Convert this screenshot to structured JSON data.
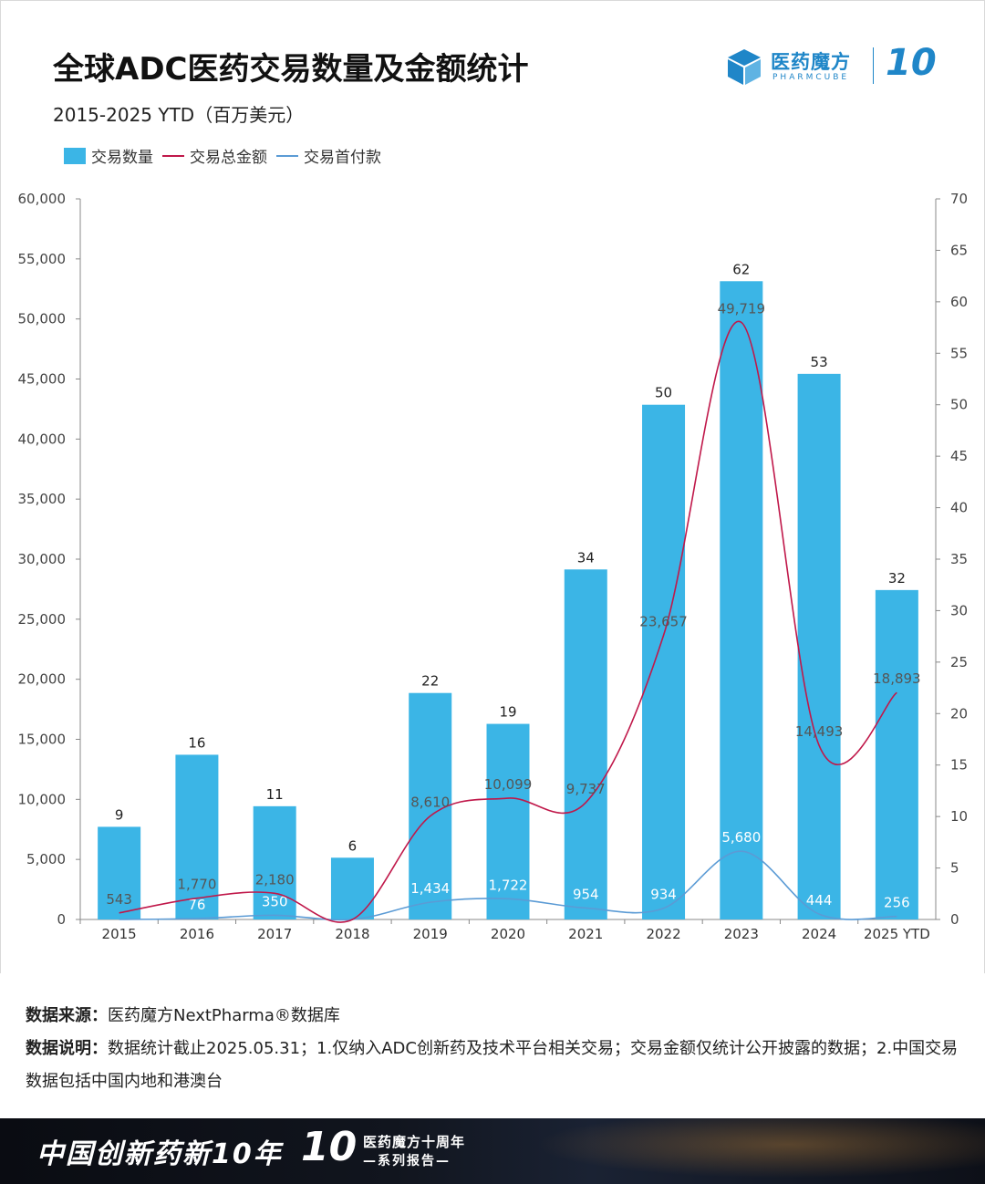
{
  "title": "全球ADC医药交易数量及金额统计",
  "subtitle": "2015-2025 YTD（百万美元）",
  "logo": {
    "cn": "医药魔方",
    "en": "PHARMCUBE",
    "ten": "10"
  },
  "colors": {
    "bar": "#3bb5e6",
    "total_line": "#c0184a",
    "upfront_line": "#5b9bd5"
  },
  "chart_data": {
    "type": "bar+line",
    "categories": [
      "2015",
      "2016",
      "2017",
      "2018",
      "2019",
      "2020",
      "2021",
      "2022",
      "2023",
      "2024",
      "2025 YTD"
    ],
    "series": [
      {
        "name": "交易数量",
        "type": "bar",
        "axis": "right",
        "values": [
          9,
          16,
          11,
          6,
          22,
          19,
          34,
          50,
          62,
          53,
          32
        ]
      },
      {
        "name": "交易总金额",
        "type": "line",
        "axis": "left",
        "values": [
          543,
          1770,
          2180,
          null,
          8610,
          10099,
          9737,
          23657,
          49719,
          14493,
          18893
        ],
        "labels": [
          "543",
          "1,770",
          "2,180",
          "",
          "8,610",
          "10,099",
          "9,737",
          "23,657",
          "49,719",
          "14,493",
          "18,893"
        ]
      },
      {
        "name": "交易首付款",
        "type": "line",
        "axis": "left",
        "values": [
          null,
          76,
          350,
          null,
          1434,
          1722,
          954,
          934,
          5680,
          444,
          256
        ],
        "labels": [
          "",
          "76",
          "350",
          "",
          "1,434",
          "1,722",
          "954",
          "934",
          "5,680",
          "444",
          "256"
        ]
      }
    ],
    "left_axis": {
      "min": 0,
      "max": 60000,
      "ticks": [
        "0",
        "5,000",
        "10,000",
        "15,000",
        "20,000",
        "25,000",
        "30,000",
        "35,000",
        "40,000",
        "45,000",
        "50,000",
        "55,000",
        "60,000"
      ]
    },
    "right_axis": {
      "min": 0,
      "max": 70,
      "ticks": [
        "0",
        "5",
        "10",
        "15",
        "20",
        "25",
        "30",
        "35",
        "40",
        "45",
        "50",
        "55",
        "60",
        "65",
        "70"
      ]
    },
    "legend_position": "top-left"
  },
  "notes": {
    "source_label": "数据来源：",
    "source_text": "医药魔方NextPharma®数据库",
    "desc_label": "数据说明：",
    "desc_text": "数据统计截止2025.05.31；1.仅纳入ADC创新药及技术平台相关交易；交易金额仅统计公开披露的数据；2.中国交易数据包括中国内地和港澳台"
  },
  "footer": {
    "slogan": "中国创新药新10年",
    "ten": "10",
    "line1": "医药魔方十周年",
    "line2": "—系列报告—"
  }
}
